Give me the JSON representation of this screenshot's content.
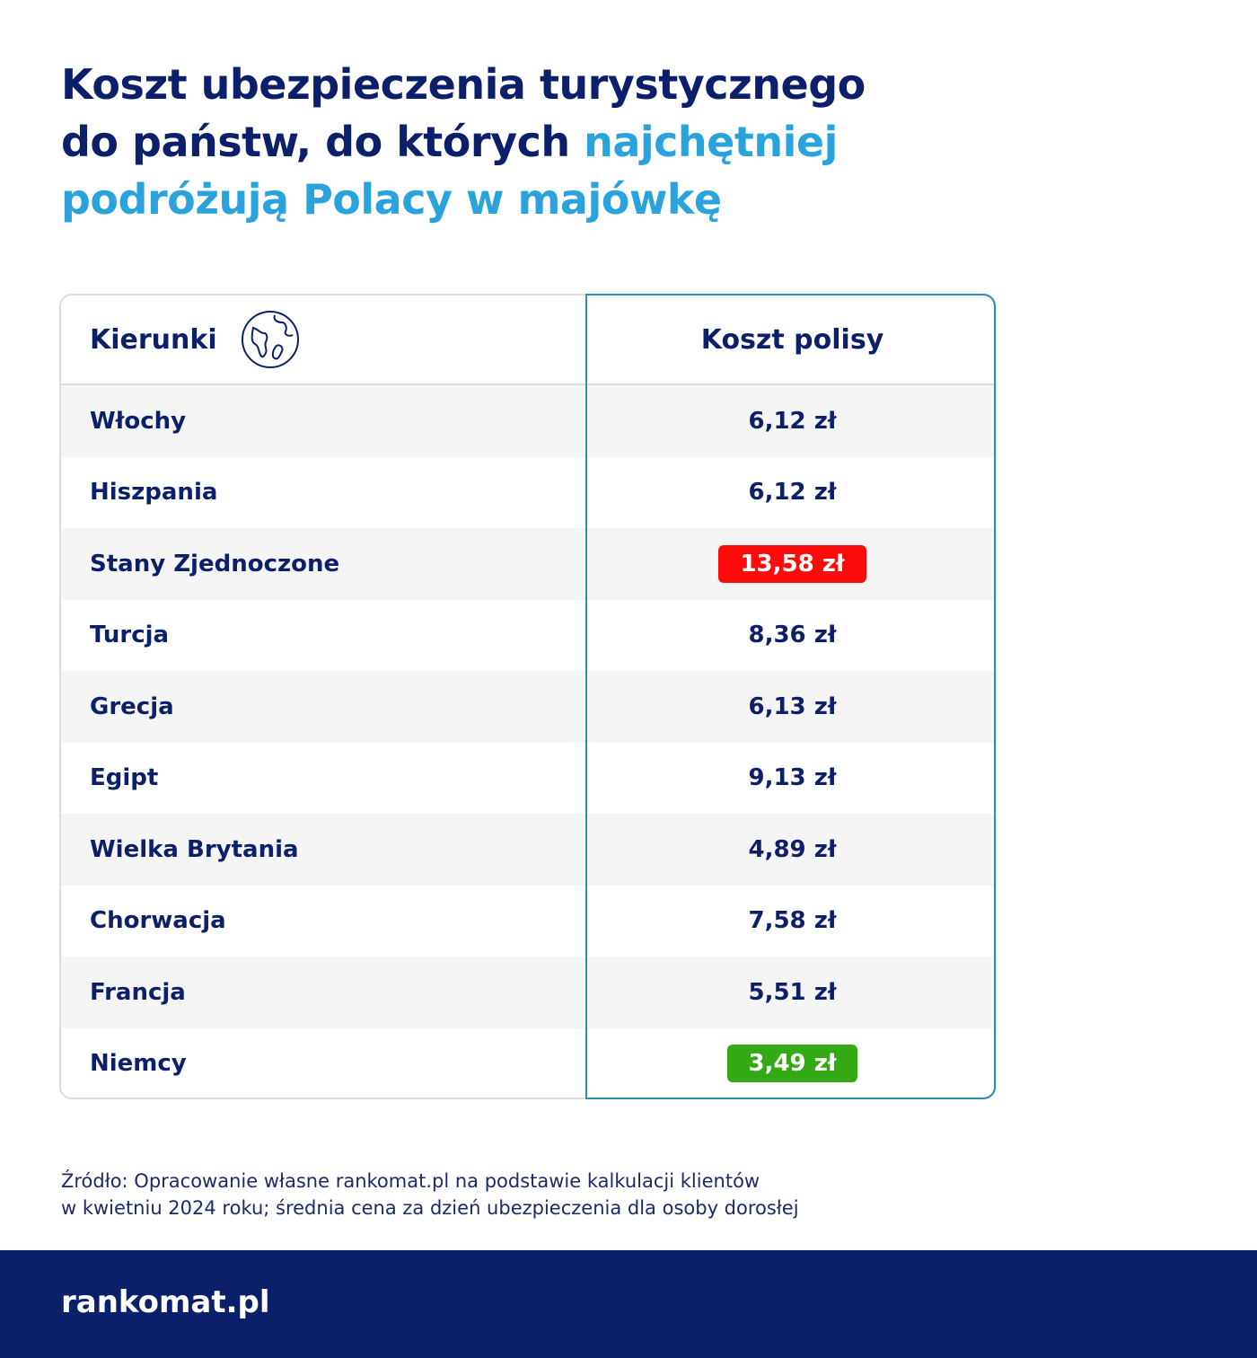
{
  "header": {
    "title_lines": [
      [
        {
          "text": "Koszt ubezpieczenia turystycznego",
          "color": "#0c1f6b"
        }
      ],
      [
        {
          "text": "do państw, do których ",
          "color": "#0c1f6b"
        },
        {
          "text": "najchętniej",
          "color": "#2aa3dc"
        }
      ],
      [
        {
          "text": "podróżują Polacy w majówkę",
          "color": "#2aa3dc"
        }
      ]
    ]
  },
  "table": {
    "headers": [
      "Kierunki",
      "Koszt polisy"
    ],
    "rows": [
      {
        "country": "Włochy",
        "cost": "6,12 zł"
      },
      {
        "country": "Hiszpania",
        "cost": "6,12 zł"
      },
      {
        "country": "Stany Zjednoczone",
        "cost": "13,58 zł",
        "badge": "#ff0a0a"
      },
      {
        "country": "Turcja",
        "cost": "8,36 zł"
      },
      {
        "country": "Grecja",
        "cost": "6,13 zł"
      },
      {
        "country": "Egipt",
        "cost": "9,13 zł"
      },
      {
        "country": "Wielka Brytania",
        "cost": "4,89 zł"
      },
      {
        "country": "Chorwacja",
        "cost": "7,58 zł"
      },
      {
        "country": "Francja",
        "cost": "5,51 zł"
      },
      {
        "country": "Niemcy",
        "cost": "3,49 zł",
        "badge": "#33aa14"
      }
    ]
  },
  "source": [
    "Źródło: Opracowanie własne rankomat.pl na podstawie kalkulacji klientów",
    "w kwietniu 2024 roku; średnia cena za dzień ubezpieczenia dla osoby dorosłej"
  ],
  "footer": {
    "logo": "rankomat.pl"
  }
}
